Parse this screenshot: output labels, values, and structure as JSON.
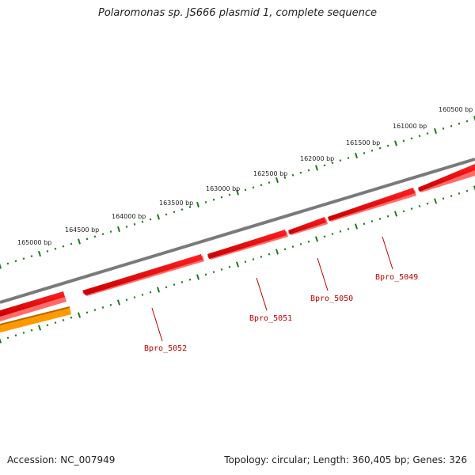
{
  "title": "Polaromonas sp. JS666 plasmid 1, complete sequence",
  "footer": {
    "accession": "Accession: NC_007949",
    "summary": "Topology: circular; Length: 360,405 bp; Genes: 326"
  },
  "colors": {
    "backbone": "#808080",
    "gene_forward": "#e00000",
    "gene_feature": "#ff9900",
    "tick": "#1f7a1f",
    "label": "#c00000"
  },
  "scale_labels": [
    "160500 bp",
    "161000 bp",
    "161500 bp",
    "162000 bp",
    "162500 bp",
    "163000 bp",
    "163500 bp",
    "164000 bp",
    "164500 bp",
    "165000 bp"
  ],
  "genes": [
    {
      "label": "Bpro_5049",
      "color": "#e00000"
    },
    {
      "label": "Bpro_5050",
      "color": "#e00000"
    },
    {
      "label": "Bpro_5051",
      "color": "#e00000"
    },
    {
      "label": "Bpro_5052",
      "color": "#e00000"
    }
  ]
}
